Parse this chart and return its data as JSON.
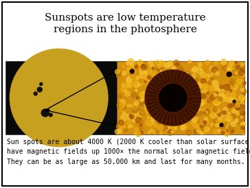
{
  "title_line1": "Sunspots are low temperature",
  "title_line2": "regions in the photosphere",
  "title_fontsize": 11,
  "title_font": "serif",
  "body_text": "Sun spots are about 4000 K (2000 K cooler than solar surface) and\nhave magnetic fields up 1000× the normal solar magnetic field.\nThey can be as large as 50,000 km and last for many months.",
  "body_fontsize": 7.0,
  "body_font": "monospace",
  "background_color": "#ffffff",
  "border_color": "#000000",
  "left_panel_color": "#0a0a0a",
  "sun_color": "#c8a020",
  "right_panel_color": "#d4900a"
}
